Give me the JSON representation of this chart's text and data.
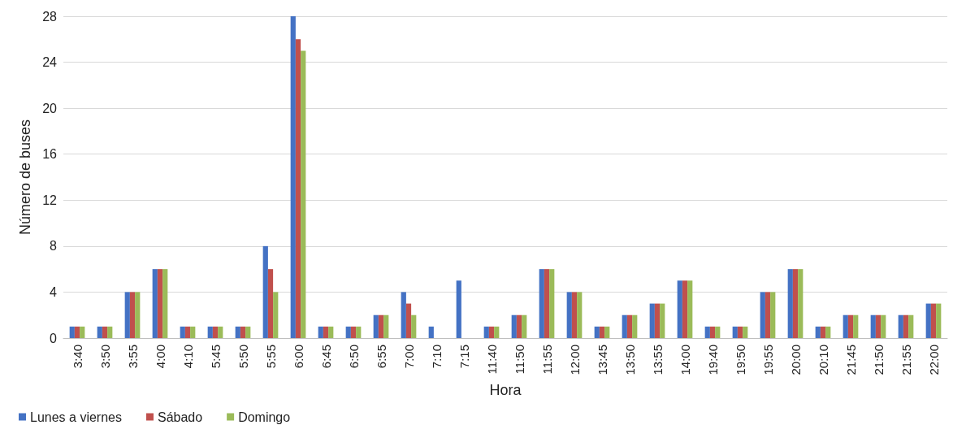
{
  "chart_data": {
    "type": "bar",
    "xlabel": "Hora",
    "ylabel": "Número de buses",
    "categories": [
      "3:40",
      "3:50",
      "3:55",
      "4:00",
      "4:10",
      "5:45",
      "5:50",
      "5:55",
      "6:00",
      "6:45",
      "6:50",
      "6:55",
      "7:00",
      "7:10",
      "7:15",
      "11:40",
      "11:50",
      "11:55",
      "12:00",
      "13:45",
      "13:50",
      "13:55",
      "14:00",
      "19:40",
      "19:50",
      "19:55",
      "20:00",
      "20:10",
      "21:45",
      "21:50",
      "21:55",
      "22:00"
    ],
    "series": [
      {
        "name": "Lunes a viernes",
        "color": "#4472c4",
        "values": [
          1,
          1,
          4,
          6,
          1,
          1,
          1,
          8,
          28,
          1,
          1,
          2,
          4,
          1,
          5,
          1,
          2,
          6,
          4,
          1,
          2,
          3,
          5,
          1,
          1,
          4,
          6,
          1,
          2,
          2,
          2,
          3
        ]
      },
      {
        "name": "Sábado",
        "color": "#c0504d",
        "values": [
          1,
          1,
          4,
          6,
          1,
          1,
          1,
          6,
          26,
          1,
          1,
          2,
          3,
          0,
          0,
          1,
          2,
          6,
          4,
          1,
          2,
          3,
          5,
          1,
          1,
          4,
          6,
          1,
          2,
          2,
          2,
          3
        ]
      },
      {
        "name": "Domingo",
        "color": "#9bbb59",
        "values": [
          1,
          1,
          4,
          6,
          1,
          1,
          1,
          4,
          25,
          1,
          1,
          2,
          2,
          0,
          0,
          1,
          2,
          6,
          4,
          1,
          2,
          3,
          5,
          1,
          1,
          4,
          6,
          1,
          2,
          2,
          2,
          3
        ]
      }
    ],
    "ylim": [
      0,
      28
    ],
    "yticks": [
      0,
      4,
      8,
      12,
      16,
      20,
      24,
      28
    ],
    "grid": "y",
    "legend": "bottom left"
  }
}
